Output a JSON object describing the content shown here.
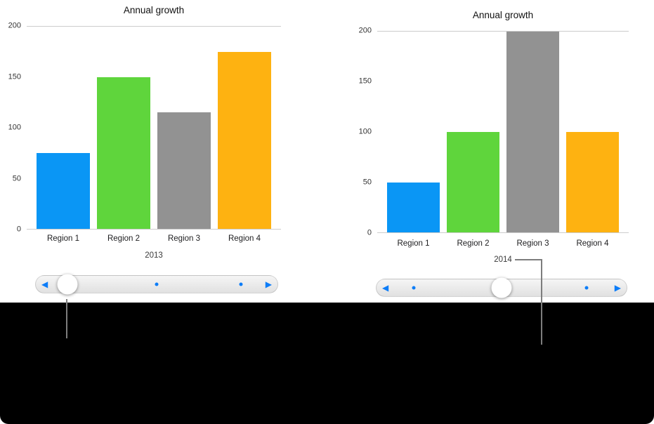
{
  "figure": {
    "background": "#ffffff",
    "footer_background": "#000000"
  },
  "colors": {
    "bar_blue": "#0a96f5",
    "bar_green": "#5fd53c",
    "bar_gray": "#929292",
    "bar_orange": "#feb211",
    "slider_accent": "#0d7df8",
    "axis_line": "#cccccc",
    "callout_line": "#7d7d7d"
  },
  "chart_data": [
    {
      "type": "bar",
      "title": "Annual growth",
      "series_label": "2013",
      "categories": [
        "Region 1",
        "Region 2",
        "Region 3",
        "Region 4"
      ],
      "values": [
        75,
        150,
        115,
        175
      ],
      "bar_colors": [
        "#0a96f5",
        "#5fd53c",
        "#929292",
        "#feb211"
      ],
      "ylim": [
        0,
        200
      ],
      "yticks": [
        0,
        50,
        100,
        150,
        200
      ],
      "grid": "top gridline and baseline only",
      "legend": "none"
    },
    {
      "type": "bar",
      "title": "Annual growth",
      "series_label": "2014",
      "categories": [
        "Region 1",
        "Region 2",
        "Region 3",
        "Region 4"
      ],
      "values": [
        50,
        100,
        200,
        100
      ],
      "bar_colors": [
        "#0a96f5",
        "#5fd53c",
        "#929292",
        "#feb211"
      ],
      "ylim": [
        0,
        200
      ],
      "yticks": [
        0,
        50,
        100,
        150,
        200
      ],
      "grid": "top gridline and baseline only",
      "legend": "none"
    }
  ],
  "sliders": [
    {
      "prev_icon": "◀",
      "next_icon": "▶",
      "knob_pct": 13,
      "dots_pct": [
        50,
        85
      ]
    },
    {
      "prev_icon": "◀",
      "next_icon": "▶",
      "knob_pct": 50,
      "dots_pct": [
        15,
        84
      ]
    }
  ]
}
